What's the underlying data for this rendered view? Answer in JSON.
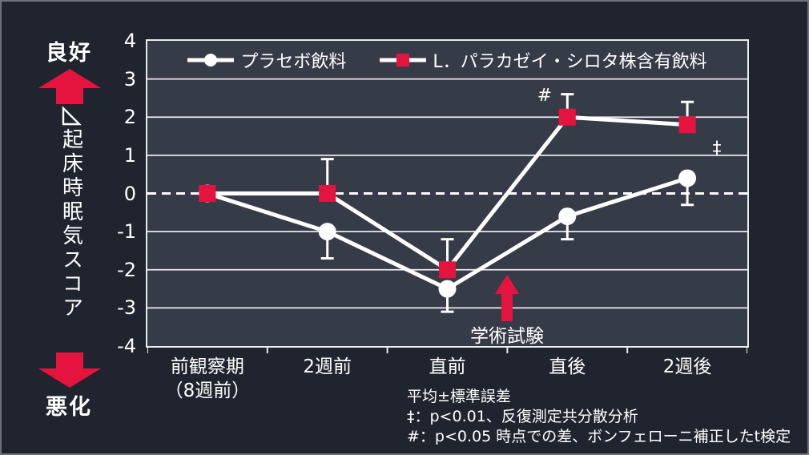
{
  "page": {
    "background": "#20242e",
    "plot_background": "#363b48",
    "accent_red": "#e5143e",
    "grid_color": "#e9ebee",
    "text_color": "#ffffff"
  },
  "left_panel": {
    "good_label": "良好",
    "worse_label": "悪化",
    "axis_title": "起床時眠気スコア",
    "axis_title_prefix_icon": "delta-triangle"
  },
  "chart_data": {
    "type": "line",
    "categories": [
      "前観察期\n（8週前）",
      "2週前",
      "直前",
      "直後",
      "2週後"
    ],
    "series": [
      {
        "name": "プラセボ飲料",
        "marker": "circle",
        "marker_color": "#ffffff",
        "line_color": "#ffffff",
        "values": [
          0,
          -1.0,
          -2.5,
          -0.6,
          0.4
        ],
        "errors": [
          0,
          0.7,
          0.6,
          0.6,
          0.7
        ],
        "error_direction": "down"
      },
      {
        "name": "L．パラカゼイ・シロタ株含有飲料",
        "marker": "square",
        "marker_color": "#e5143e",
        "line_color": "#ffffff",
        "values": [
          0,
          0,
          -2.0,
          2.0,
          1.8
        ],
        "errors": [
          0,
          0.9,
          0.8,
          0.6,
          0.6
        ],
        "error_direction": "up"
      }
    ],
    "ylim": [
      -4,
      4
    ],
    "yticks": [
      4,
      3,
      2,
      1,
      0,
      -1,
      -2,
      -3,
      -4
    ],
    "ylabel": "⊿起床時眠気スコア",
    "y_good_direction": "良好",
    "y_bad_direction": "悪化",
    "zero_line": "dashed",
    "grid": "horizontal",
    "legend_position": "top-center",
    "error_bars": "平均±標準誤差",
    "annotations": [
      {
        "text": "#",
        "category": "直後",
        "note": "p<0.05 時点での差"
      },
      {
        "text": "‡",
        "category": "2週後",
        "note": "p<0.01"
      },
      {
        "text": "学術試験",
        "type": "red-up-arrow",
        "between": [
          "直前",
          "直後"
        ]
      }
    ]
  },
  "annotations": {
    "trial_label": "学術試験",
    "hash_marker": "#",
    "dagger_marker": "‡"
  },
  "footnotes": {
    "line1": "平均±標準誤差",
    "line2": "‡：p<0.01、反復測定共分散分析",
    "line3": "#：p<0.05 時点での差、ボンフェローニ補正したt検定"
  }
}
